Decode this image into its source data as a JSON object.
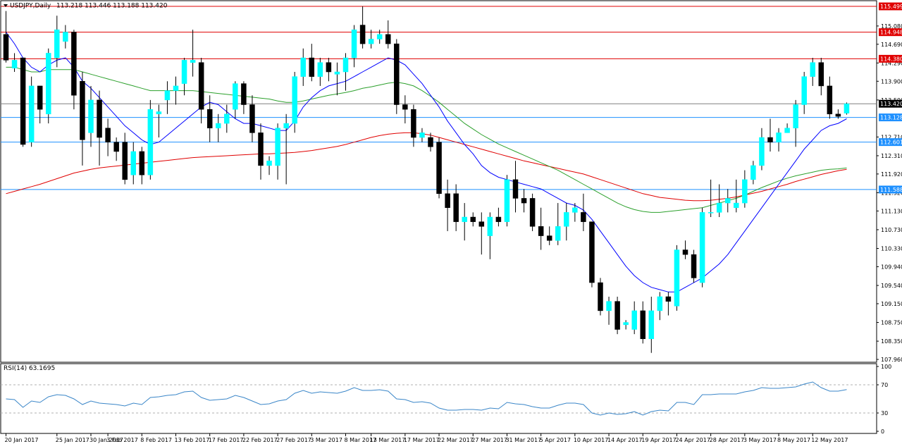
{
  "header": {
    "symbol": "USDJPY,Daily",
    "ohlc": "113.218 113.446 113.188 113.420"
  },
  "rsi_panel": {
    "label": "RSI(14) 63.1695",
    "levels": [
      "100",
      "70",
      "30",
      "0"
    ]
  },
  "colors": {
    "bull": "#00ffff",
    "bear": "#000000",
    "ma_fast": "#0000ff",
    "ma_mid": "#2ca02c",
    "ma_slow": "#e00000",
    "res_line": "#e00000",
    "sup_line": "#1e90ff",
    "cur_price": "#000000",
    "rsi_line": "#3a86c8"
  },
  "chart_data": {
    "type": "candlestick",
    "ylim": [
      107.9,
      115.62
    ],
    "y_ticks": [
      "115.080",
      "114.690",
      "114.290",
      "113.900",
      "113.500",
      "112.710",
      "112.310",
      "111.920",
      "111.520",
      "111.130",
      "110.730",
      "110.330",
      "109.940",
      "109.540",
      "109.150",
      "108.750",
      "108.350",
      "107.960"
    ],
    "x_labels": [
      "20 Jan 2017",
      "25 Jan 2017",
      "30 Jan 2017",
      "3 Feb 2017",
      "8 Feb 2017",
      "13 Feb 2017",
      "17 Feb 2017",
      "22 Feb 2017",
      "27 Feb 2017",
      "3 Mar 2017",
      "8 Mar 2017",
      "13 Mar 2017",
      "17 Mar 2017",
      "22 Mar 2017",
      "27 Mar 2017",
      "31 Mar 2017",
      "5 Apr 2017",
      "10 Apr 2017",
      "14 Apr 2017",
      "19 Apr 2017",
      "24 Apr 2017",
      "28 Apr 2017",
      "3 May 2017",
      "8 May 2017",
      "12 May 2017"
    ],
    "x_label_bars": [
      0,
      6,
      10,
      12,
      16,
      20,
      24,
      28,
      32,
      36,
      40,
      43,
      47,
      51,
      55,
      59,
      63,
      67,
      71,
      75,
      79,
      83,
      87,
      91,
      95
    ],
    "price_levels": [
      {
        "value": 115.499,
        "label": "115.499",
        "kind": "resistance"
      },
      {
        "value": 114.948,
        "label": "114.948",
        "kind": "resistance"
      },
      {
        "value": 114.38,
        "label": "114.380",
        "kind": "resistance"
      },
      {
        "value": 113.128,
        "label": "113.128",
        "kind": "support"
      },
      {
        "value": 112.601,
        "label": "112.601",
        "kind": "support"
      },
      {
        "value": 111.588,
        "label": "111.588",
        "kind": "support"
      }
    ],
    "current_price": {
      "value": 113.42,
      "label": "113.420"
    },
    "candles": [
      [
        114.9,
        114.35,
        115.4,
        114.3
      ],
      [
        114.18,
        114.35,
        114.5,
        114.1
      ],
      [
        114.4,
        112.55,
        114.4,
        112.5
      ],
      [
        112.6,
        113.8,
        114.0,
        112.5
      ],
      [
        113.8,
        113.3,
        113.8,
        113.0
      ],
      [
        113.2,
        114.5,
        114.6,
        113.0
      ],
      [
        114.4,
        115.0,
        115.3,
        114.2
      ],
      [
        114.75,
        114.95,
        115.1,
        114.6
      ],
      [
        114.95,
        113.6,
        115.0,
        113.3
      ],
      [
        113.9,
        112.65,
        114.1,
        112.1
      ],
      [
        112.8,
        113.5,
        113.8,
        112.5
      ],
      [
        113.5,
        112.7,
        113.7,
        112.1
      ],
      [
        112.9,
        112.6,
        113.1,
        112.3
      ],
      [
        112.6,
        112.4,
        112.7,
        112.2
      ],
      [
        112.6,
        111.8,
        112.8,
        111.7
      ],
      [
        111.9,
        112.4,
        112.6,
        111.7
      ],
      [
        112.4,
        111.9,
        112.5,
        111.7
      ],
      [
        111.9,
        113.3,
        113.5,
        111.8
      ],
      [
        113.2,
        113.25,
        113.4,
        112.7
      ],
      [
        113.5,
        113.7,
        113.9,
        113.2
      ],
      [
        113.7,
        113.8,
        114.0,
        113.4
      ],
      [
        113.85,
        114.35,
        114.4,
        113.6
      ],
      [
        114.3,
        114.35,
        115.0,
        114.0
      ],
      [
        114.3,
        113.3,
        114.4,
        113.0
      ],
      [
        113.3,
        112.9,
        113.6,
        112.6
      ],
      [
        112.9,
        113.0,
        113.2,
        112.6
      ],
      [
        113.0,
        113.2,
        113.4,
        112.8
      ],
      [
        113.3,
        113.85,
        113.9,
        113.1
      ],
      [
        113.85,
        113.4,
        113.9,
        113.2
      ],
      [
        113.4,
        112.8,
        113.6,
        112.6
      ],
      [
        112.8,
        112.1,
        113.0,
        111.8
      ],
      [
        112.1,
        112.2,
        112.3,
        111.9
      ],
      [
        112.1,
        112.9,
        113.0,
        111.8
      ],
      [
        112.9,
        113.0,
        113.2,
        111.7
      ],
      [
        113.0,
        114.0,
        114.1,
        112.8
      ],
      [
        114.0,
        114.4,
        114.6,
        113.8
      ],
      [
        114.4,
        114.0,
        114.7,
        113.9
      ],
      [
        114.0,
        114.3,
        114.4,
        113.8
      ],
      [
        114.3,
        114.1,
        114.4,
        113.9
      ],
      [
        114.05,
        114.1,
        114.3,
        113.6
      ],
      [
        114.1,
        114.4,
        114.5,
        113.7
      ],
      [
        114.4,
        115.0,
        115.1,
        114.2
      ],
      [
        115.1,
        114.7,
        115.5,
        114.6
      ],
      [
        114.7,
        114.8,
        115.0,
        114.6
      ],
      [
        114.8,
        114.9,
        115.0,
        114.7
      ],
      [
        114.9,
        114.7,
        115.2,
        114.6
      ],
      [
        114.7,
        113.4,
        114.8,
        113.2
      ],
      [
        113.4,
        113.3,
        113.6,
        113.0
      ],
      [
        113.3,
        112.7,
        113.4,
        112.5
      ],
      [
        112.7,
        112.8,
        112.9,
        112.6
      ],
      [
        112.7,
        112.5,
        112.8,
        112.4
      ],
      [
        112.6,
        111.5,
        112.7,
        111.4
      ],
      [
        111.5,
        111.2,
        111.8,
        110.7
      ],
      [
        111.5,
        110.9,
        111.7,
        110.7
      ],
      [
        110.9,
        111.0,
        111.3,
        110.5
      ],
      [
        111.0,
        110.9,
        111.1,
        110.8
      ],
      [
        110.9,
        110.8,
        111.1,
        110.2
      ],
      [
        110.6,
        111.0,
        111.1,
        110.1
      ],
      [
        111.0,
        110.9,
        111.2,
        110.8
      ],
      [
        110.9,
        111.8,
        111.9,
        110.8
      ],
      [
        111.8,
        111.4,
        112.2,
        111.1
      ],
      [
        111.4,
        111.3,
        111.6,
        111.1
      ],
      [
        111.4,
        110.8,
        111.5,
        110.7
      ],
      [
        110.8,
        110.6,
        111.2,
        110.3
      ],
      [
        110.6,
        110.5,
        110.8,
        110.4
      ],
      [
        110.5,
        110.8,
        111.3,
        110.4
      ],
      [
        110.8,
        111.1,
        111.3,
        110.5
      ],
      [
        111.1,
        111.2,
        111.3,
        110.9
      ],
      [
        111.1,
        110.9,
        111.5,
        110.7
      ],
      [
        110.9,
        109.6,
        110.9,
        109.5
      ],
      [
        109.6,
        109.0,
        109.7,
        108.9
      ],
      [
        109.0,
        109.2,
        109.3,
        108.7
      ],
      [
        109.2,
        108.6,
        109.3,
        108.5
      ],
      [
        108.7,
        108.75,
        108.8,
        108.6
      ],
      [
        108.6,
        109.0,
        109.2,
        108.5
      ],
      [
        109.0,
        108.4,
        109.2,
        108.3
      ],
      [
        108.4,
        109.0,
        109.3,
        108.1
      ],
      [
        109.0,
        109.3,
        109.4,
        108.8
      ],
      [
        109.3,
        109.2,
        109.4,
        108.9
      ],
      [
        109.1,
        110.3,
        110.4,
        109.0
      ],
      [
        110.3,
        110.2,
        110.5,
        110.1
      ],
      [
        110.2,
        109.7,
        110.3,
        109.6
      ],
      [
        109.6,
        111.1,
        111.2,
        109.5
      ],
      [
        111.1,
        111.1,
        111.8,
        111.0
      ],
      [
        111.1,
        111.3,
        111.7,
        111.0
      ],
      [
        111.3,
        111.4,
        111.6,
        111.1
      ],
      [
        111.2,
        111.3,
        111.8,
        111.1
      ],
      [
        111.3,
        111.8,
        112.0,
        111.2
      ],
      [
        111.8,
        112.1,
        112.2,
        111.7
      ],
      [
        112.1,
        112.7,
        112.9,
        112.0
      ],
      [
        112.7,
        112.6,
        113.1,
        112.4
      ],
      [
        112.6,
        112.8,
        112.9,
        112.4
      ],
      [
        112.8,
        112.9,
        113.0,
        112.8
      ],
      [
        112.9,
        113.4,
        113.5,
        112.5
      ],
      [
        113.4,
        114.0,
        114.1,
        113.2
      ],
      [
        114.0,
        114.3,
        114.4,
        113.8
      ],
      [
        114.3,
        113.8,
        114.4,
        113.6
      ],
      [
        113.8,
        113.2,
        114.0,
        113.1
      ],
      [
        113.2,
        113.15,
        113.3,
        113.1
      ],
      [
        113.218,
        113.42,
        113.446,
        113.188
      ]
    ],
    "ma_fast": [
      114.95,
      114.7,
      114.4,
      114.2,
      114.1,
      114.25,
      114.35,
      114.4,
      114.2,
      113.9,
      113.75,
      113.55,
      113.35,
      113.15,
      112.95,
      112.8,
      112.65,
      112.55,
      112.6,
      112.75,
      112.9,
      113.05,
      113.2,
      113.35,
      113.45,
      113.4,
      113.25,
      113.1,
      113.0,
      113.0,
      112.95,
      112.9,
      112.85,
      112.85,
      113.05,
      113.35,
      113.55,
      113.7,
      113.8,
      113.85,
      113.9,
      114.0,
      114.1,
      114.2,
      114.3,
      114.4,
      114.35,
      114.25,
      114.05,
      113.85,
      113.6,
      113.35,
      113.05,
      112.8,
      112.55,
      112.35,
      112.1,
      111.95,
      111.85,
      111.8,
      111.75,
      111.7,
      111.65,
      111.6,
      111.5,
      111.4,
      111.3,
      111.25,
      111.15,
      110.95,
      110.7,
      110.45,
      110.2,
      109.95,
      109.75,
      109.6,
      109.5,
      109.45,
      109.4,
      109.4,
      109.5,
      109.6,
      109.7,
      109.85,
      110.0,
      110.2,
      110.45,
      110.7,
      110.95,
      111.2,
      111.45,
      111.7,
      111.95,
      112.2,
      112.45,
      112.65,
      112.85,
      112.95,
      113.0,
      113.1
    ],
    "ma_mid": [
      114.2,
      114.2,
      114.15,
      114.1,
      114.1,
      114.15,
      114.15,
      114.15,
      114.15,
      114.1,
      114.05,
      114.0,
      113.95,
      113.9,
      113.85,
      113.8,
      113.75,
      113.7,
      113.7,
      113.7,
      113.7,
      113.7,
      113.7,
      113.68,
      113.66,
      113.64,
      113.62,
      113.6,
      113.58,
      113.56,
      113.54,
      113.52,
      113.48,
      113.45,
      113.45,
      113.48,
      113.52,
      113.56,
      113.6,
      113.63,
      113.66,
      113.7,
      113.75,
      113.78,
      113.82,
      113.86,
      113.88,
      113.85,
      113.8,
      113.7,
      113.58,
      113.45,
      113.3,
      113.15,
      113.0,
      112.88,
      112.76,
      112.66,
      112.56,
      112.48,
      112.4,
      112.32,
      112.24,
      112.16,
      112.08,
      112.0,
      111.9,
      111.8,
      111.7,
      111.6,
      111.5,
      111.4,
      111.3,
      111.22,
      111.16,
      111.12,
      111.1,
      111.1,
      111.12,
      111.14,
      111.16,
      111.18,
      111.2,
      111.25,
      111.3,
      111.35,
      111.4,
      111.47,
      111.55,
      111.63,
      111.7,
      111.77,
      111.83,
      111.88,
      111.92,
      111.96,
      112.0,
      112.02,
      112.03,
      112.05
    ],
    "ma_slow": [
      111.5,
      111.55,
      111.6,
      111.65,
      111.7,
      111.76,
      111.82,
      111.88,
      111.94,
      111.98,
      112.02,
      112.05,
      112.07,
      112.09,
      112.11,
      112.13,
      112.15,
      112.17,
      112.19,
      112.21,
      112.23,
      112.25,
      112.27,
      112.28,
      112.29,
      112.3,
      112.31,
      112.32,
      112.33,
      112.34,
      112.35,
      112.35,
      112.36,
      112.37,
      112.38,
      112.4,
      112.42,
      112.45,
      112.48,
      112.51,
      112.55,
      112.6,
      112.65,
      112.7,
      112.74,
      112.77,
      112.79,
      112.8,
      112.8,
      112.78,
      112.75,
      112.7,
      112.65,
      112.6,
      112.55,
      112.5,
      112.45,
      112.4,
      112.35,
      112.3,
      112.25,
      112.2,
      112.16,
      112.12,
      112.08,
      112.04,
      112.0,
      111.96,
      111.92,
      111.86,
      111.8,
      111.74,
      111.68,
      111.62,
      111.56,
      111.5,
      111.46,
      111.42,
      111.4,
      111.38,
      111.36,
      111.35,
      111.35,
      111.36,
      111.38,
      111.4,
      111.43,
      111.47,
      111.51,
      111.55,
      111.6,
      111.65,
      111.7,
      111.76,
      111.81,
      111.86,
      111.91,
      111.95,
      111.99,
      112.02
    ],
    "rsi": [
      50,
      49,
      38,
      47,
      45,
      53,
      56,
      55,
      50,
      42,
      47,
      44,
      43,
      42,
      40,
      44,
      42,
      52,
      53,
      55,
      56,
      60,
      61,
      52,
      48,
      49,
      50,
      55,
      52,
      47,
      42,
      43,
      47,
      49,
      58,
      62,
      58,
      60,
      59,
      58,
      61,
      66,
      62,
      62,
      63,
      61,
      50,
      49,
      45,
      46,
      44,
      37,
      34,
      34,
      35,
      35,
      34,
      37,
      36,
      45,
      43,
      42,
      39,
      37,
      37,
      41,
      44,
      44,
      42,
      30,
      27,
      30,
      28,
      29,
      32,
      27,
      32,
      34,
      33,
      45,
      45,
      42,
      56,
      56,
      57,
      57,
      57,
      60,
      62,
      66,
      65,
      65,
      66,
      67,
      71,
      74,
      66,
      61,
      61,
      63.17
    ]
  }
}
